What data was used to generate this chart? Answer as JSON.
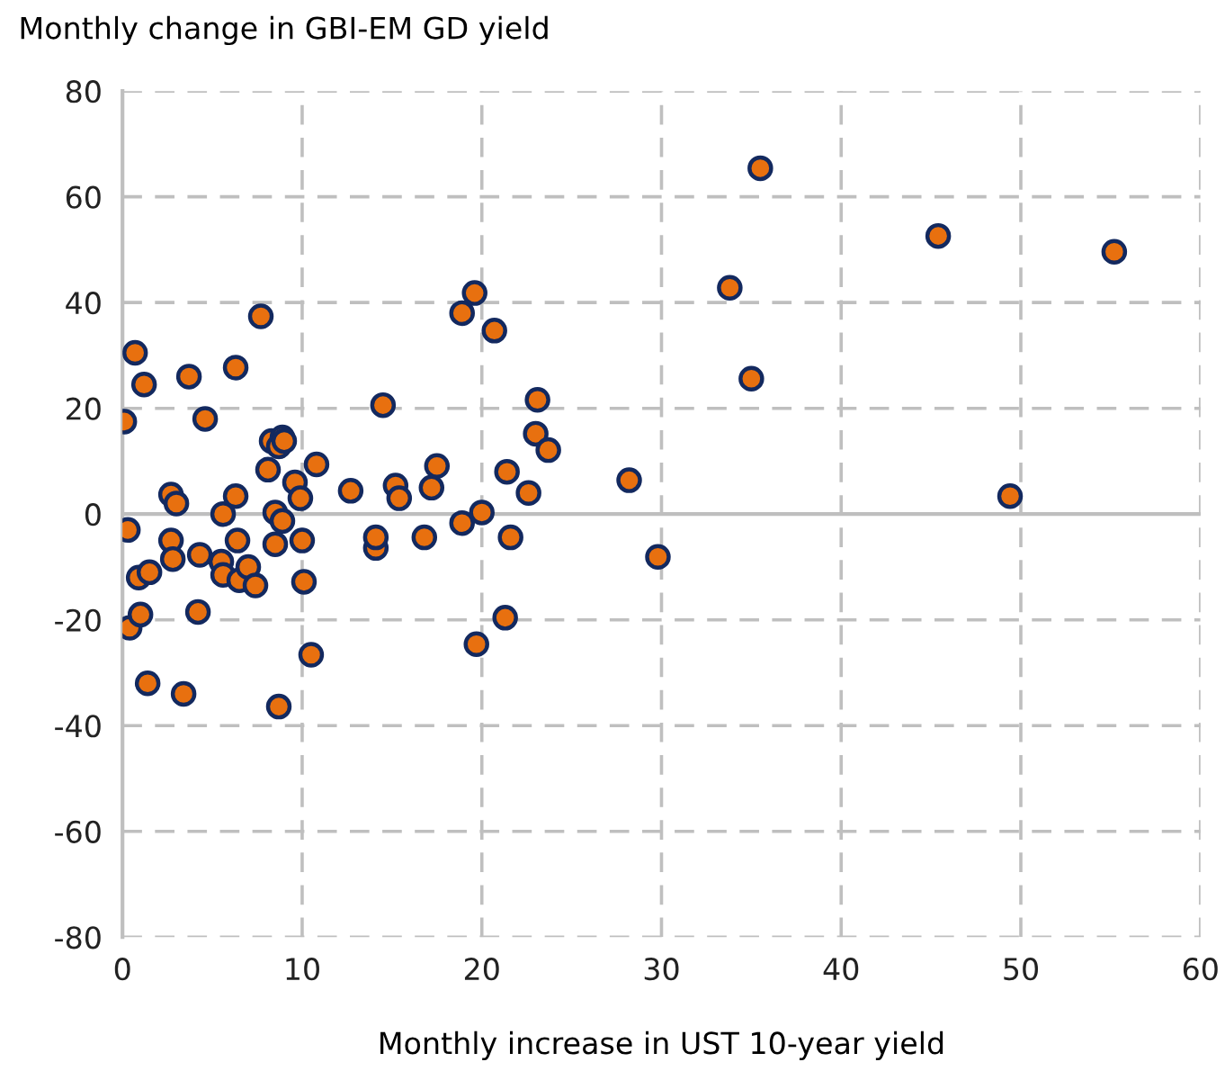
{
  "chart_data": {
    "type": "scatter",
    "xlabel": "Monthly increase in UST 10-year yield",
    "ylabel": "Monthly change in GBI-EM GD yield",
    "series": [
      {
        "color": "#e8700f",
        "x": [
          0.1,
          0.3,
          0.4,
          0.7,
          0.9,
          1,
          1.2,
          1.5,
          1.4,
          2.7,
          2.7,
          2.8,
          3,
          3.4,
          3.7,
          4.2,
          4.3,
          4.6,
          5.5,
          5.6,
          5.6,
          6.3,
          6.4,
          6.3,
          6.5,
          7,
          7.4,
          7.7,
          8.1,
          8.3,
          8.5,
          8.5,
          8.7,
          8.9,
          8.7,
          8.9,
          9,
          9.6,
          9.9,
          10,
          10.1,
          10.5,
          10.8,
          12.7,
          14.1,
          14.1,
          14.5,
          15.2,
          15.4,
          16.8,
          17.2,
          17.5,
          18.9,
          18.9,
          19.6,
          19.7,
          20,
          20.7,
          21.3,
          21.4,
          21.6,
          22.6,
          23,
          23.1,
          23.7,
          28.2,
          29.8,
          33.8,
          35,
          35.5,
          45.4,
          49.4,
          55.2
        ],
        "values": [
          17.5,
          -3,
          -21.5,
          30.5,
          -12,
          -19,
          24.5,
          -11,
          -32,
          3.7,
          -5,
          -8.5,
          2,
          -34,
          26,
          -18.5,
          -7.7,
          18,
          -9,
          0,
          -11.5,
          3.4,
          -5,
          27.7,
          -12.5,
          -10,
          -13.5,
          37.4,
          8.4,
          13.8,
          -5.7,
          0.3,
          -36.4,
          14.5,
          12.8,
          -1.3,
          13.8,
          6,
          3,
          -5,
          -12.8,
          -26.6,
          9.4,
          4.4,
          -6.4,
          -4.4,
          20.6,
          5.4,
          3,
          -4.4,
          5,
          9.1,
          -1.7,
          38,
          41.8,
          -24.6,
          0.3,
          34.7,
          -19.6,
          8,
          -4.4,
          4,
          15.2,
          21.6,
          12.1,
          6.4,
          -8.1,
          42.8,
          25.6,
          65.4,
          52.6,
          3.4,
          49.6
        ]
      }
    ],
    "xlim": [
      0,
      60
    ],
    "xticks": [
      0,
      10,
      20,
      30,
      40,
      50,
      60
    ],
    "ylim": [
      -80,
      80
    ],
    "yticks": [
      -80,
      -60,
      -40,
      -20,
      0,
      20,
      40,
      60,
      80
    ],
    "grid": true,
    "marker": "circle",
    "ref_lines": [
      {
        "axis": "y",
        "value": 0,
        "color": "#bfbfbf",
        "line_style": "solid"
      }
    ]
  }
}
